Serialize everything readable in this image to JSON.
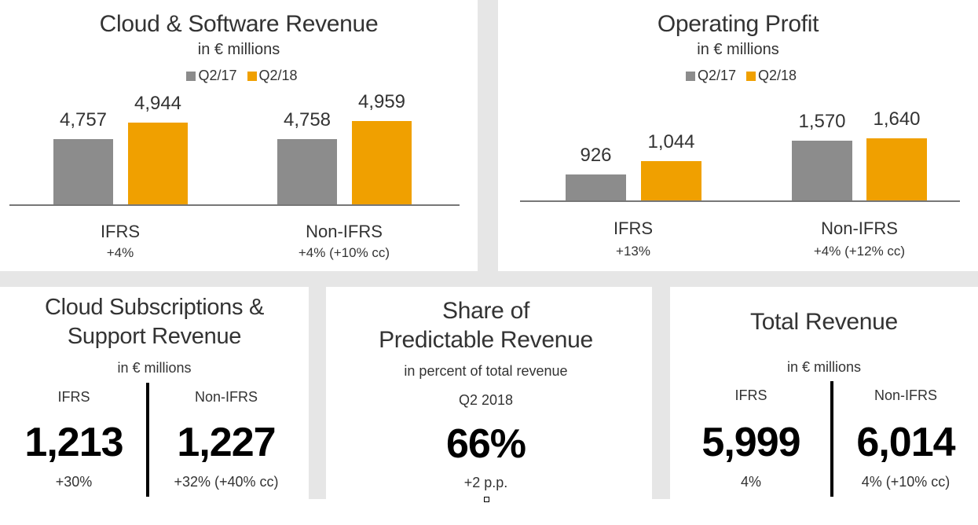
{
  "colors": {
    "q217": "#8c8c8c",
    "q218": "#f0a000"
  },
  "chart_data": [
    {
      "type": "bar",
      "title": "Cloud & Software Revenue",
      "subtitle": "in € millions",
      "categories": [
        "IFRS",
        "Non-IFRS"
      ],
      "category_notes": [
        "+4%",
        "+4% (+10% cc)"
      ],
      "series": [
        {
          "name": "Q2/17",
          "values": [
            4757,
            4758
          ]
        },
        {
          "name": "Q2/18",
          "values": [
            4944,
            4959
          ]
        }
      ],
      "value_labels": [
        [
          "4,757",
          "4,758"
        ],
        [
          "4,944",
          "4,959"
        ]
      ],
      "legend": "top"
    },
    {
      "type": "bar",
      "title": "Operating Profit",
      "subtitle": "in € millions",
      "categories": [
        "IFRS",
        "Non-IFRS"
      ],
      "category_notes": [
        "+13%",
        "+4% (+12% cc)"
      ],
      "series": [
        {
          "name": "Q2/17",
          "values": [
            926,
            1570
          ]
        },
        {
          "name": "Q2/18",
          "values": [
            1044,
            1640
          ]
        }
      ],
      "value_labels": [
        [
          "926",
          "1,570"
        ],
        [
          "1,044",
          "1,640"
        ]
      ],
      "legend": "top"
    }
  ],
  "cloud_subs": {
    "title1": "Cloud Subscriptions &",
    "title2": "Support Revenue",
    "subtitle": "in € millions",
    "ifrs": {
      "label": "IFRS",
      "value": "1,213",
      "change": "+30%"
    },
    "nonifrs": {
      "label": "Non-IFRS",
      "value": "1,227",
      "change": "+32% (+40% cc)"
    }
  },
  "predictable": {
    "title1": "Share of",
    "title2": "Predictable Revenue",
    "subtitle": "in percent of total revenue",
    "period": "Q2 2018",
    "value": "66%",
    "change": "+2 p.p."
  },
  "total": {
    "title": "Total Revenue",
    "subtitle": "in € millions",
    "ifrs": {
      "label": "IFRS",
      "value": "5,999",
      "change": "4%"
    },
    "nonifrs": {
      "label": "Non-IFRS",
      "value": "6,014",
      "change": "4% (+10% cc)"
    }
  }
}
